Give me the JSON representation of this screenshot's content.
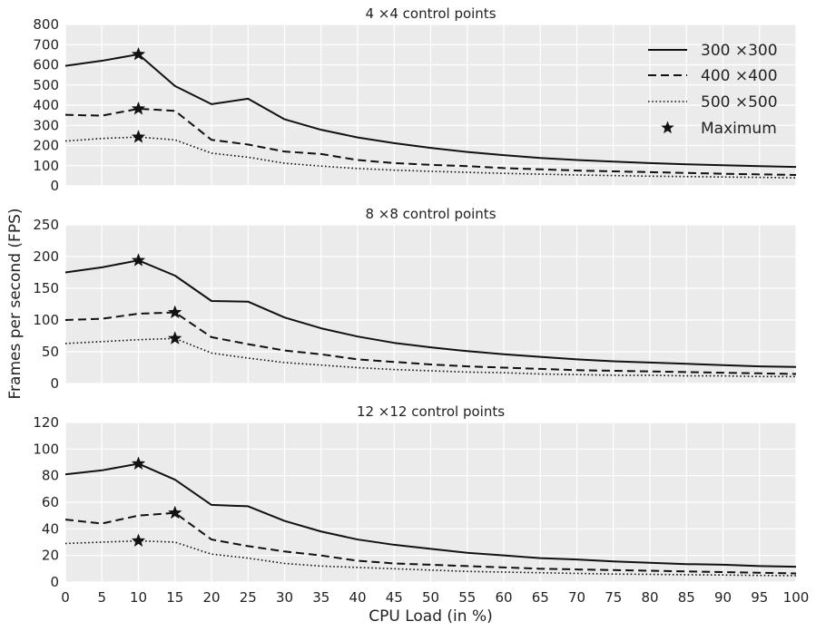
{
  "chart_data": {
    "type": "line",
    "xlabel": "CPU Load (in %)",
    "ylabel": "Frames per second (FPS)",
    "x": [
      0,
      5,
      10,
      15,
      20,
      25,
      30,
      35,
      40,
      45,
      50,
      55,
      60,
      65,
      70,
      75,
      80,
      85,
      90,
      95,
      100
    ],
    "xlim": [
      0,
      100
    ],
    "grid": true,
    "legend": {
      "location": "top-right of first panel",
      "entries": [
        "300 ×300",
        "400 ×400",
        "500 ×500",
        "Maximum"
      ]
    },
    "styles": {
      "300 ×300": "solid",
      "400 ×400": "dashed",
      "500 ×500": "dotted",
      "Maximum": "star marker"
    },
    "colors": {
      "background": "#ebebeb",
      "grid": "#ffffff",
      "line": "#111111"
    },
    "panels": [
      {
        "title": "4 ×4 control points",
        "ylim": [
          0,
          800
        ],
        "yticks": [
          0,
          100,
          200,
          300,
          400,
          500,
          600,
          700,
          800
        ],
        "series": [
          {
            "name": "300 ×300",
            "values": [
              595,
              620,
              652,
              495,
              405,
              432,
              330,
              278,
              240,
              212,
              188,
              168,
              152,
              138,
              128,
              120,
              113,
              107,
              102,
              98,
              94
            ]
          },
          {
            "name": "400 ×400",
            "values": [
              352,
              348,
              382,
              372,
              228,
              205,
              170,
              158,
              128,
              113,
              104,
              98,
              88,
              82,
              76,
              72,
              68,
              64,
              60,
              57,
              54
            ]
          },
          {
            "name": "500 ×500",
            "values": [
              222,
              235,
              242,
              228,
              162,
              142,
              112,
              98,
              86,
              78,
              72,
              67,
              62,
              58,
              54,
              51,
              48,
              46,
              44,
              42,
              40
            ]
          }
        ],
        "maximum": [
          {
            "series": "300 ×300",
            "x": 10,
            "y": 652
          },
          {
            "series": "400 ×400",
            "x": 10,
            "y": 382
          },
          {
            "series": "500 ×500",
            "x": 10,
            "y": 242
          }
        ]
      },
      {
        "title": "8 ×8 control points",
        "ylim": [
          0,
          250
        ],
        "yticks": [
          0,
          50,
          100,
          150,
          200,
          250
        ],
        "series": [
          {
            "name": "300 ×300",
            "values": [
              175,
              183,
              194,
              170,
              130,
              129,
              104,
              87,
              74,
              64,
              57,
              51,
              46,
              42,
              38,
              35,
              33,
              31,
              29,
              27,
              26
            ]
          },
          {
            "name": "400 ×400",
            "values": [
              100,
              102,
              110,
              112,
              73,
              62,
              52,
              46,
              38,
              34,
              30,
              27,
              25,
              23,
              21,
              20,
              19,
              18,
              17,
              16,
              15
            ]
          },
          {
            "name": "500 ×500",
            "values": [
              63,
              66,
              69,
              71,
              48,
              40,
              33,
              29,
              25,
              22,
              20,
              18,
              17,
              15,
              14,
              13,
              13,
              12,
              12,
              11,
              11
            ]
          }
        ],
        "maximum": [
          {
            "series": "300 ×300",
            "x": 10,
            "y": 194
          },
          {
            "series": "400 ×400",
            "x": 15,
            "y": 112
          },
          {
            "series": "500 ×500",
            "x": 15,
            "y": 71
          }
        ]
      },
      {
        "title": "12 ×12 control points",
        "ylim": [
          0,
          120
        ],
        "yticks": [
          0,
          20,
          40,
          60,
          80,
          100,
          120
        ],
        "series": [
          {
            "name": "300 ×300",
            "values": [
              81,
              84,
              89,
              77,
              58,
              57,
              46,
              38,
              32,
              28,
              25,
              22,
              20,
              18,
              17,
              15.5,
              14.5,
              13.5,
              13,
              12,
              11.5
            ]
          },
          {
            "name": "400 ×400",
            "values": [
              47,
              44,
              50,
              52,
              32,
              27,
              23,
              20,
              16,
              14,
              13,
              12,
              11,
              10,
              9.5,
              9,
              8.5,
              8,
              7.5,
              7,
              6.5
            ]
          },
          {
            "name": "500 ×500",
            "values": [
              29,
              30,
              31,
              30,
              21,
              18,
              14,
              12,
              11,
              10,
              9,
              8,
              7.5,
              7,
              6.5,
              6,
              5.8,
              5.5,
              5.3,
              5,
              4.8
            ]
          }
        ],
        "maximum": [
          {
            "series": "300 ×300",
            "x": 10,
            "y": 89
          },
          {
            "series": "400 ×400",
            "x": 15,
            "y": 52
          },
          {
            "series": "500 ×500",
            "x": 10,
            "y": 31
          }
        ]
      }
    ]
  }
}
